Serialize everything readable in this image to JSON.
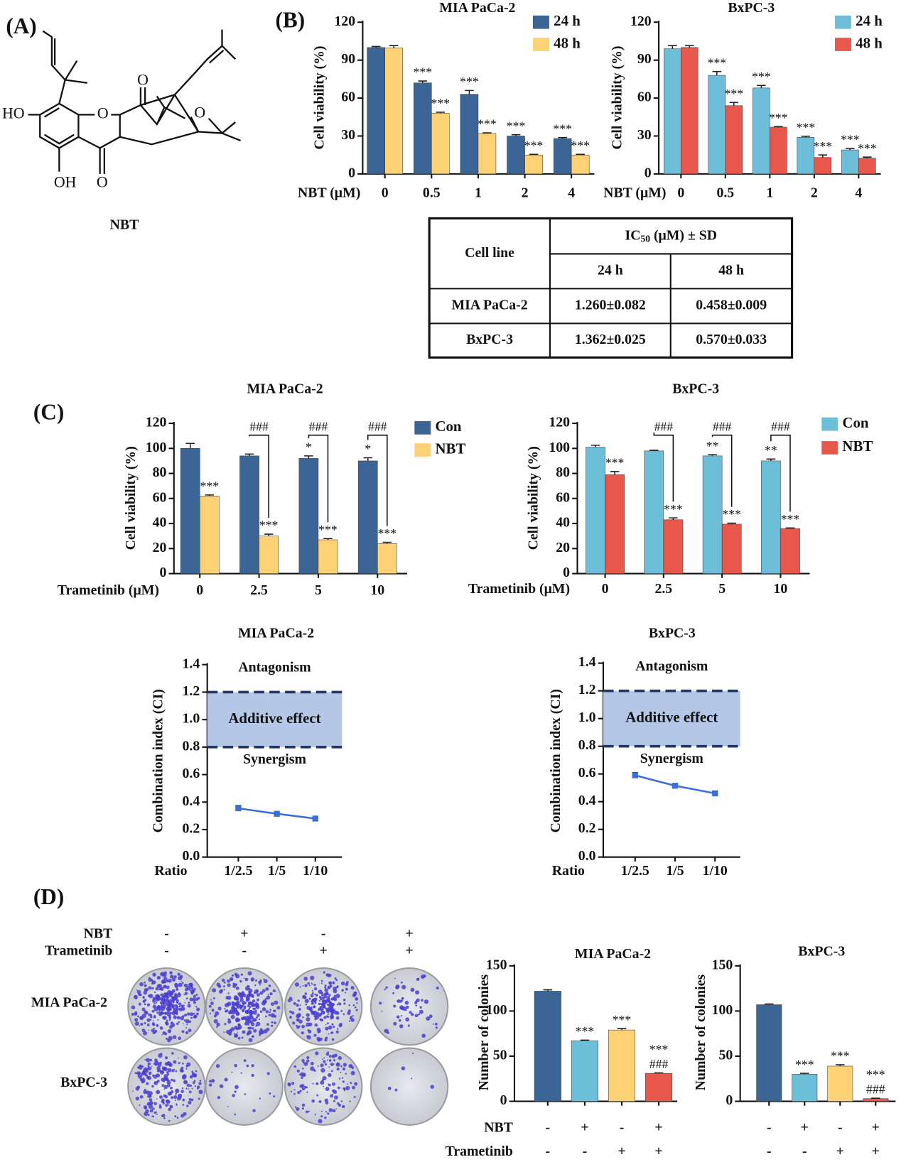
{
  "panels": [
    "(A)",
    "(B)",
    "(C)",
    "(D)"
  ],
  "structure": {
    "name": "NBT",
    "atoms": [
      "HO",
      "O",
      "O",
      "O",
      "OH",
      "O"
    ]
  },
  "table": {
    "header": {
      "row_head": "Cell line",
      "group": {
        "main": "IC",
        "sub": "50",
        "rest": " (μM) ± SD"
      },
      "columns": [
        "24 h",
        "48 h"
      ]
    },
    "rows": [
      [
        "MIA PaCa-2",
        "1.260±0.082",
        "0.458±0.009"
      ],
      [
        "BxPC-3",
        "1.362±0.025",
        "0.570±0.033"
      ]
    ]
  },
  "colony_assay": {
    "row_labels": [
      "MIA PaCa-2",
      "BxPC-3"
    ],
    "conditions": [
      {
        "name": "NBT",
        "signs": [
          "-",
          "+",
          "-",
          "+"
        ]
      },
      {
        "name": "Trametinib",
        "signs": [
          "-",
          "-",
          "+",
          "+"
        ]
      }
    ]
  },
  "chart_data": [
    {
      "type": "bar",
      "title": "MIA PaCa-2",
      "xlabel": "NBT (μM)",
      "ylabel": "Cell viability (%)",
      "categories": [
        "0",
        "0.5",
        "1",
        "2",
        "4"
      ],
      "ylim": [
        0,
        120
      ],
      "yticks": [
        0,
        30,
        60,
        90,
        120
      ],
      "series": [
        {
          "name": "24 h",
          "color": "#3a6595",
          "values": [
            100,
            72,
            63,
            30,
            28
          ],
          "errors": [
            0.8,
            1.5,
            3,
            1,
            0.8
          ],
          "annotations": [
            null,
            "***",
            "***",
            "***",
            "***"
          ]
        },
        {
          "name": "48 h",
          "color": "#fdd275",
          "values": [
            99.5,
            48,
            32,
            15,
            15
          ],
          "errors": [
            2,
            0.8,
            0.5,
            0.5,
            0.5
          ],
          "annotations": [
            null,
            "***",
            "***",
            "***",
            "***"
          ]
        }
      ]
    },
    {
      "type": "bar",
      "title": "BxPC-3",
      "xlabel": "NBT (μM)",
      "ylabel": "Cell viability (%)",
      "categories": [
        "0",
        "0.5",
        "1",
        "2",
        "4"
      ],
      "ylim": [
        0,
        120
      ],
      "yticks": [
        0,
        30,
        60,
        90,
        120
      ],
      "series": [
        {
          "name": "24 h",
          "color": "#6dbfd9",
          "values": [
            99,
            78,
            68,
            29,
            19
          ],
          "errors": [
            2.5,
            3,
            2,
            0.8,
            1.2
          ],
          "annotations": [
            null,
            "***",
            "***",
            "***",
            "***"
          ]
        },
        {
          "name": "48 h",
          "color": "#e8574b",
          "values": [
            100,
            54,
            37,
            13,
            12.5
          ],
          "errors": [
            1.5,
            2.5,
            0.5,
            2,
            0.8
          ],
          "annotations": [
            null,
            "***",
            "***",
            "***",
            "***"
          ]
        }
      ]
    },
    {
      "type": "bar",
      "title": "MIA PaCa-2",
      "xlabel": "Trametinib (μM)",
      "ylabel": "Cell viability (%)",
      "categories": [
        "0",
        "2.5",
        "5",
        "10"
      ],
      "ylim": [
        0,
        120
      ],
      "yticks": [
        0,
        20,
        40,
        60,
        80,
        100,
        120
      ],
      "comparison_labels": [
        null,
        "###",
        "###",
        "###"
      ],
      "series": [
        {
          "name": "Con",
          "color": "#3a6595",
          "values": [
            100,
            94,
            92,
            90
          ],
          "errors": [
            4,
            1.5,
            2,
            2.5
          ],
          "annotations": [
            null,
            null,
            "*",
            "*"
          ]
        },
        {
          "name": "NBT",
          "color": "#fdd275",
          "values": [
            62,
            30,
            27,
            24
          ],
          "errors": [
            0.8,
            1.5,
            1,
            1
          ],
          "annotations": [
            "***",
            "***",
            "***",
            "***"
          ]
        }
      ]
    },
    {
      "type": "bar",
      "title": "BxPC-3",
      "xlabel": "Trametinib (μM)",
      "ylabel": "Cell viability (%)",
      "categories": [
        "0",
        "2.5",
        "5",
        "10"
      ],
      "ylim": [
        0,
        120
      ],
      "yticks": [
        0,
        20,
        40,
        60,
        80,
        100,
        120
      ],
      "comparison_labels": [
        null,
        "###",
        "###",
        "###"
      ],
      "series": [
        {
          "name": "Con",
          "color": "#6dbfd9",
          "values": [
            101,
            98,
            94,
            90
          ],
          "errors": [
            1.5,
            0.5,
            1,
            1.5
          ],
          "annotations": [
            null,
            null,
            "**",
            "**"
          ]
        },
        {
          "name": "NBT",
          "color": "#e8574b",
          "values": [
            79,
            43,
            39.5,
            36
          ],
          "errors": [
            2.5,
            1.5,
            0.8,
            0.5
          ],
          "annotations": [
            "***",
            "***",
            "***",
            "***"
          ]
        }
      ]
    },
    {
      "type": "line",
      "title": "MIA PaCa-2",
      "xlabel": "Ratio",
      "ylabel": "Combination index (CI)",
      "categories": [
        "1/2.5",
        "1/5",
        "1/10"
      ],
      "values": [
        0.355,
        0.315,
        0.28
      ],
      "errors": [
        0.02,
        0.01,
        0.008
      ],
      "color": "#3a6fd8",
      "ylim": [
        0,
        1.4
      ],
      "yticks": [
        {
          "value": 0,
          "label": "0.0"
        },
        0.2,
        0.4,
        0.6,
        0.8,
        {
          "value": 1,
          "label": "1.0"
        },
        1.2,
        1.4
      ],
      "band": [
        0.8,
        1.2
      ],
      "band_labels": {
        "upper": "Antagonism",
        "band": "Additive effect",
        "lower": "Synergism"
      }
    },
    {
      "type": "line",
      "title": "BxPC-3",
      "xlabel": "Ratio",
      "ylabel": "Combination index (CI)",
      "categories": [
        "1/2.5",
        "1/5",
        "1/10"
      ],
      "values": [
        0.59,
        0.515,
        0.46
      ],
      "errors": [
        0.02,
        0.012,
        0.01
      ],
      "color": "#3a6fd8",
      "ylim": [
        0,
        1.4
      ],
      "yticks": [
        {
          "value": 0,
          "label": "0.0"
        },
        0.2,
        0.4,
        0.6,
        0.8,
        {
          "value": 1,
          "label": "1.0"
        },
        1.2,
        1.4
      ],
      "band": [
        0.8,
        1.2
      ],
      "band_labels": {
        "upper": "Antagonism",
        "band": "Additive effect",
        "lower": "Synergism"
      }
    },
    {
      "type": "bar",
      "title": "MIA PaCa-2",
      "ylabel": "Number of colonies",
      "categories": [
        null,
        null,
        null,
        null
      ],
      "values": [
        122,
        67,
        79,
        31
      ],
      "errors": [
        1.5,
        0.8,
        1.5,
        0.5
      ],
      "colors": [
        "#3a6595",
        "#6dbfd9",
        "#fdd275",
        "#e8574b"
      ],
      "annotations": [
        null,
        "***",
        "***",
        "***"
      ],
      "annotations_2": [
        null,
        null,
        null,
        "###"
      ],
      "ylim": [
        0,
        150
      ],
      "yticks": [
        0,
        50,
        100,
        150
      ],
      "conditions": [
        {
          "name": "NBT",
          "signs": [
            "-",
            "+",
            "-",
            "+"
          ]
        },
        {
          "name": "Trametinib",
          "signs": [
            "-",
            "-",
            "+",
            "+"
          ]
        }
      ]
    },
    {
      "type": "bar",
      "title": "BxPC-3",
      "ylabel": "Number of colonies",
      "categories": [
        null,
        null,
        null,
        null
      ],
      "values": [
        107,
        30,
        39,
        3
      ],
      "errors": [
        0.8,
        1,
        1.5,
        0.5
      ],
      "colors": [
        "#3a6595",
        "#6dbfd9",
        "#fdd275",
        "#e8574b"
      ],
      "annotations": [
        null,
        "***",
        "***",
        "***"
      ],
      "annotations_2": [
        null,
        null,
        null,
        "###"
      ],
      "ylim": [
        0,
        150
      ],
      "yticks": [
        0,
        50,
        100,
        150
      ],
      "conditions": [
        {
          "signs": [
            "-",
            "+",
            "-",
            "+"
          ]
        },
        {
          "signs": [
            "-",
            "-",
            "+",
            "+"
          ]
        }
      ]
    }
  ]
}
